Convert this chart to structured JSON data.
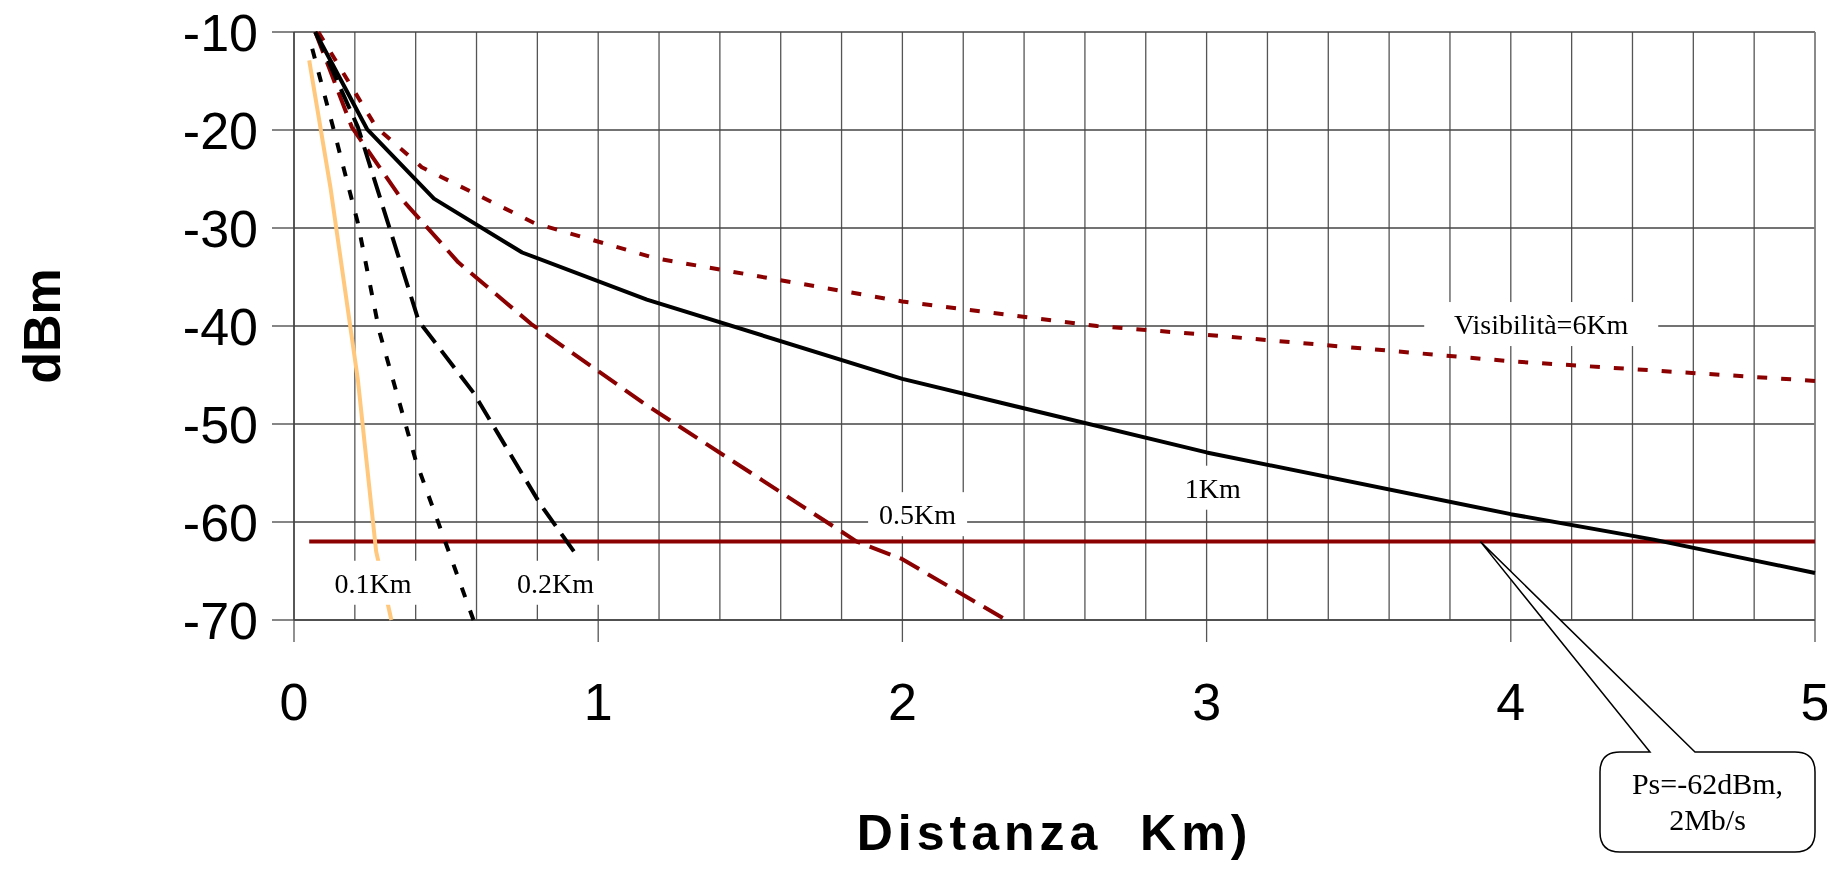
{
  "chart_data": {
    "type": "line",
    "xlabel": "Distanza  Km)",
    "ylabel": "dBm",
    "xlim": [
      0,
      5
    ],
    "ylim": [
      -70,
      -10
    ],
    "xticks": [
      0,
      {
        "value": 0.2,
        "label": null
      },
      {
        "value": 0.4,
        "label": null
      },
      {
        "value": 0.6,
        "label": null
      },
      {
        "value": 0.8,
        "label": null
      },
      1,
      {
        "value": 1.2,
        "label": null
      },
      {
        "value": 1.4,
        "label": null
      },
      {
        "value": 1.6,
        "label": null
      },
      {
        "value": 1.8,
        "label": null
      },
      2,
      {
        "value": 2.2,
        "label": null
      },
      {
        "value": 2.4,
        "label": null
      },
      {
        "value": 2.6,
        "label": null
      },
      {
        "value": 2.8,
        "label": null
      },
      3,
      {
        "value": 3.2,
        "label": null
      },
      {
        "value": 3.4,
        "label": null
      },
      {
        "value": 3.6,
        "label": null
      },
      {
        "value": 3.8,
        "label": null
      },
      4,
      {
        "value": 4.2,
        "label": null
      },
      {
        "value": 4.4,
        "label": null
      },
      {
        "value": 4.6,
        "label": null
      },
      {
        "value": 4.8,
        "label": null
      },
      5
    ],
    "yticks": [
      -70,
      -60,
      -50,
      -40,
      -30,
      -20,
      -10
    ],
    "grid": true,
    "series": [
      {
        "color": "#8b0000",
        "line_style": "dotted",
        "x": [
          0.08,
          0.27,
          0.42,
          0.79,
          1.19,
          2,
          2.64,
          3,
          4,
          5
        ],
        "values": [
          -10,
          -19.7,
          -23.8,
          -29.5,
          -33.1,
          -37.5,
          -40,
          -40.9,
          -43.6,
          -45.6
        ]
      },
      {
        "color": "#000000",
        "line_style": "solid",
        "x": [
          0.07,
          0.24,
          0.46,
          0.75,
          1.16,
          2,
          3,
          4,
          4.47,
          5
        ],
        "values": [
          -10,
          -19.9,
          -27,
          -32.5,
          -37.3,
          -45.4,
          -52.9,
          -59.2,
          -61.8,
          -65.2
        ]
      },
      {
        "color": "#8b0000",
        "line_style": "dashed",
        "x": [
          0.07,
          0.19,
          0.35,
          0.54,
          0.78,
          1.16,
          1.85,
          2,
          2.33
        ],
        "values": [
          -10,
          -19.7,
          -26.9,
          -33.5,
          -39.8,
          -48.1,
          -62,
          -63.8,
          -69.8
        ]
      },
      {
        "color": "#000000",
        "line_style": "dashed",
        "x": [
          0.07,
          0.21,
          0.41,
          0.59,
          0.81,
          0.92
        ],
        "values": [
          -10,
          -19.7,
          -39.5,
          -46.8,
          -58.2,
          -63
        ]
      },
      {
        "color": "#000000",
        "line_style": "dotted",
        "x": [
          0.06,
          0.13,
          0.21,
          0.28,
          0.4,
          0.49,
          0.59
        ],
        "values": [
          -11.7,
          -19.9,
          -29.5,
          -40.5,
          -53.7,
          -61.4,
          -70
        ]
      },
      {
        "color": "#ffc87c",
        "line_style": "solid",
        "x": [
          0.05,
          0.12,
          0.21,
          0.27,
          0.32
        ],
        "values": [
          -12.9,
          -25.9,
          -45.5,
          -63,
          -70
        ]
      }
    ],
    "ref_lines": [
      {
        "axis": "y",
        "value": -62,
        "color": "#8b0000"
      }
    ],
    "annotations": [
      "Visibilità=6Km",
      "1Km",
      "0.5Km",
      "0.1Km",
      "0.2Km",
      "Ps=-62dBm, 2Mb/s"
    ]
  }
}
